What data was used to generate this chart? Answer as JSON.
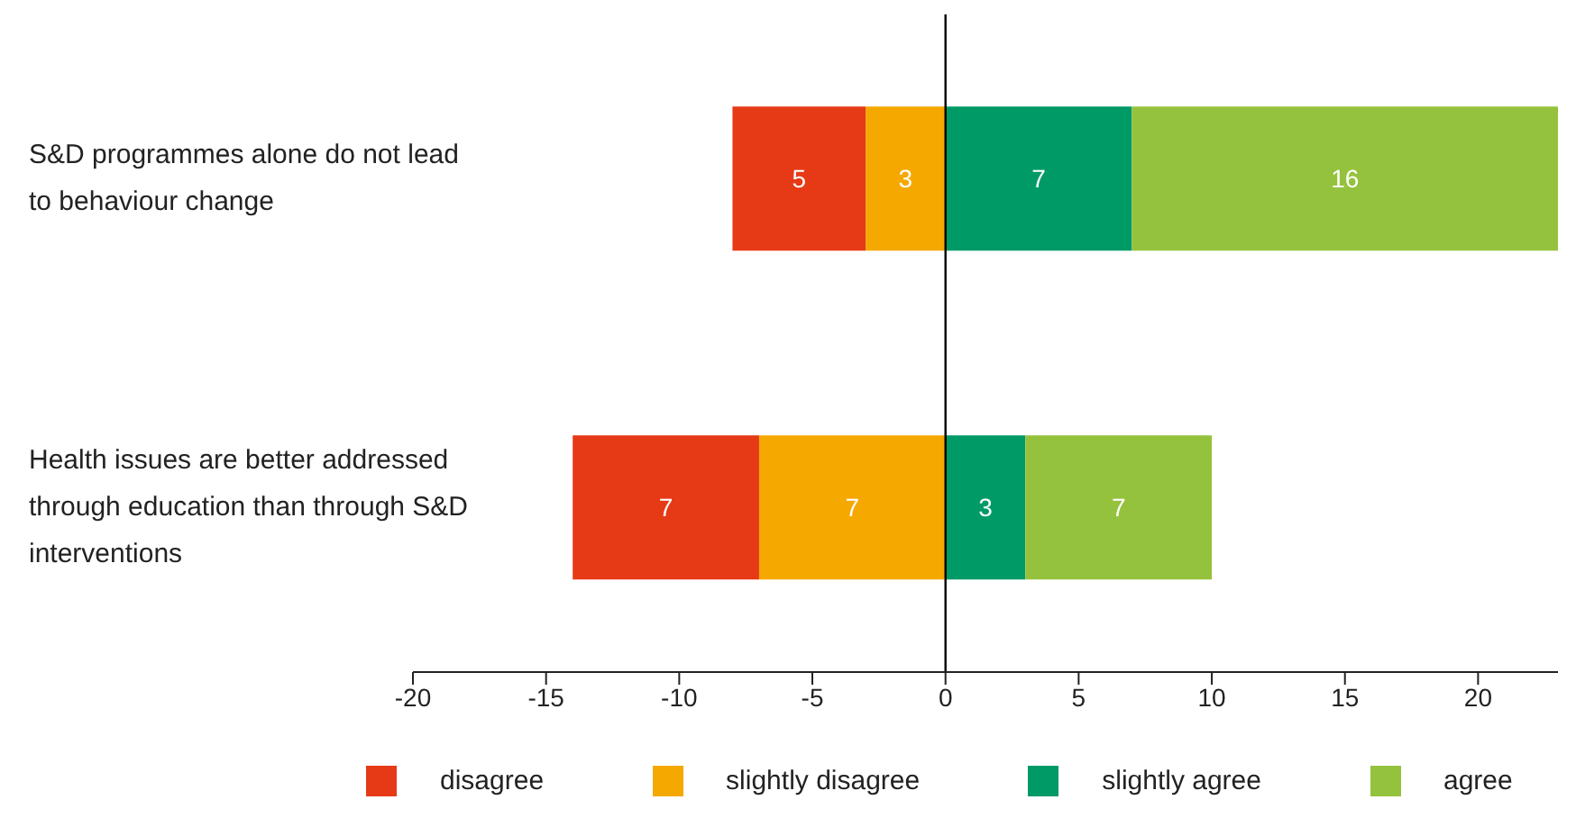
{
  "chart_data": {
    "type": "bar",
    "orientation": "horizontal",
    "data_labels": true,
    "categories": [
      "S&D programmes alone do not lead to behaviour change",
      "Health issues are better addressed through education than through S&D interventions"
    ],
    "series": [
      {
        "name": "disagree",
        "color": "#e63a17",
        "values": [
          5,
          7
        ],
        "base": [
          -8,
          -14
        ]
      },
      {
        "name": "slightly disagree",
        "color": "#f5a800",
        "values": [
          3,
          7
        ],
        "base": [
          -3,
          -7
        ]
      },
      {
        "name": "slightly agree",
        "color": "#009a66",
        "values": [
          7,
          3
        ],
        "base": [
          0,
          0
        ]
      },
      {
        "name": "agree",
        "color": "#95c23d",
        "values": [
          16,
          7
        ],
        "base": [
          7,
          3
        ]
      }
    ],
    "xlim": [
      -20,
      23
    ],
    "xticks": [
      -20,
      -15,
      -10,
      -5,
      0,
      5,
      10,
      15,
      20
    ],
    "ref_lines": [
      {
        "axis": "x",
        "value": 0,
        "color": "#000000"
      }
    ],
    "grid": false,
    "legend": "bottom"
  }
}
